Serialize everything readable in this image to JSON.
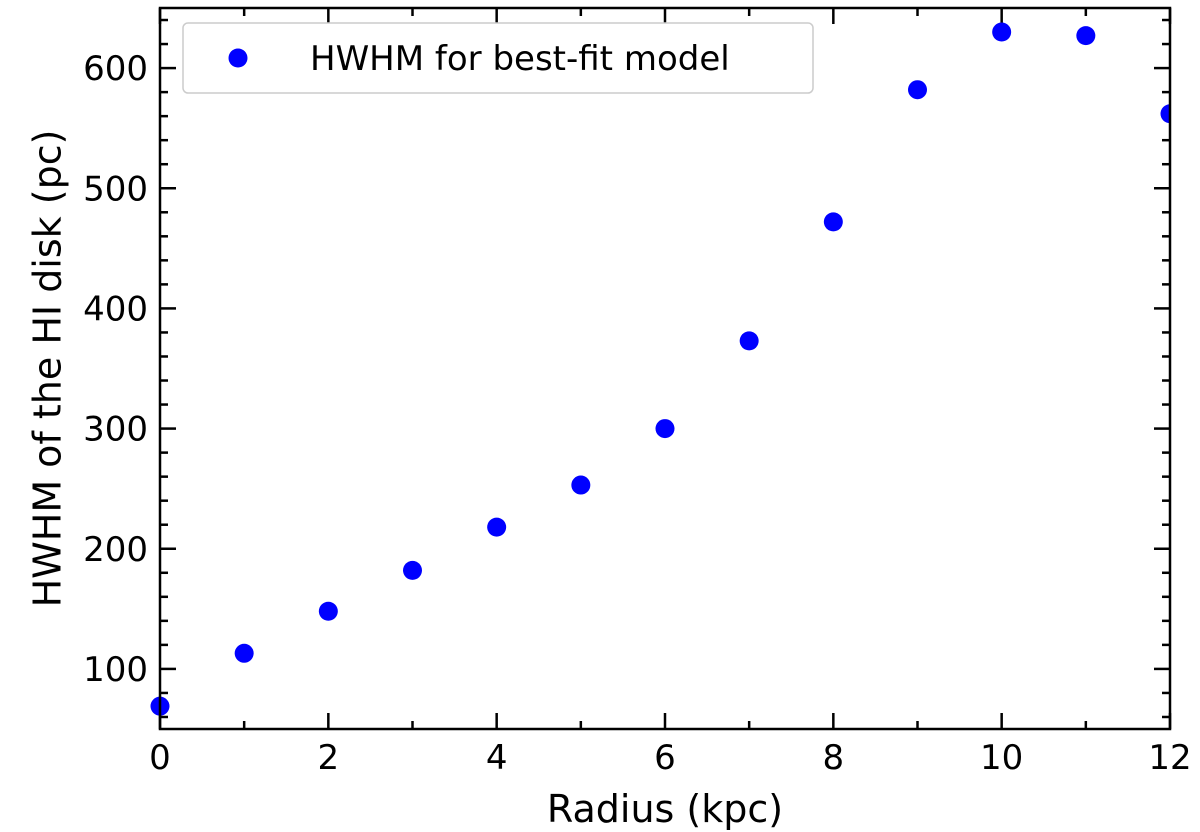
{
  "chart_data": {
    "type": "scatter",
    "xlabel": "Radius (kpc)",
    "ylabel": "HWHM of the HI disk (pc)",
    "xlim": [
      0,
      12
    ],
    "ylim": [
      50,
      650
    ],
    "x_ticks": [
      0,
      2,
      4,
      6,
      8,
      10,
      12
    ],
    "y_ticks": [
      100,
      200,
      300,
      400,
      500,
      600
    ],
    "grid": false,
    "legend": {
      "position": "top-left"
    },
    "series": [
      {
        "name": "HWHM for best-fit model",
        "color": "#0000ff",
        "marker": "circle",
        "points": [
          {
            "x": 0,
            "y": 69
          },
          {
            "x": 1,
            "y": 113
          },
          {
            "x": 2,
            "y": 148
          },
          {
            "x": 3,
            "y": 182
          },
          {
            "x": 4,
            "y": 218
          },
          {
            "x": 5,
            "y": 253
          },
          {
            "x": 6,
            "y": 300
          },
          {
            "x": 7,
            "y": 373
          },
          {
            "x": 8,
            "y": 472
          },
          {
            "x": 9,
            "y": 582
          },
          {
            "x": 10,
            "y": 630
          },
          {
            "x": 11,
            "y": 627
          },
          {
            "x": 12,
            "y": 562
          }
        ]
      }
    ]
  }
}
